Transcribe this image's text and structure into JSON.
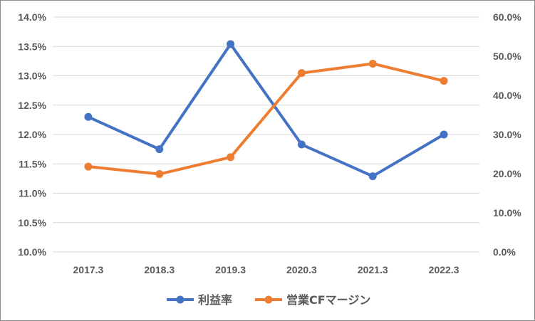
{
  "chart_data": {
    "type": "line",
    "categories": [
      "2017.3",
      "2018.3",
      "2019.3",
      "2020.3",
      "2021.3",
      "2022.3"
    ],
    "series": [
      {
        "name": "利益率",
        "axis": "left",
        "color": "#4472C4",
        "values": [
          12.3,
          11.75,
          13.54,
          11.83,
          11.29,
          12.0
        ]
      },
      {
        "name": "営業CFマージン",
        "axis": "right",
        "color": "#ED7D31",
        "values": [
          21.8,
          19.9,
          24.2,
          45.7,
          48.1,
          43.7
        ]
      }
    ],
    "y_left": {
      "min": 10.0,
      "max": 14.0,
      "ticks": [
        "10.0%",
        "10.5%",
        "11.0%",
        "11.5%",
        "12.0%",
        "12.5%",
        "13.0%",
        "13.5%",
        "14.0%"
      ]
    },
    "y_right": {
      "min": 0,
      "max": 60,
      "ticks": [
        "0.0%",
        "10.0%",
        "20.0%",
        "30.0%",
        "40.0%",
        "50.0%",
        "60.0%"
      ]
    },
    "grid": true,
    "legend_position": "bottom",
    "title": "",
    "xlabel": "",
    "ylabel": ""
  }
}
